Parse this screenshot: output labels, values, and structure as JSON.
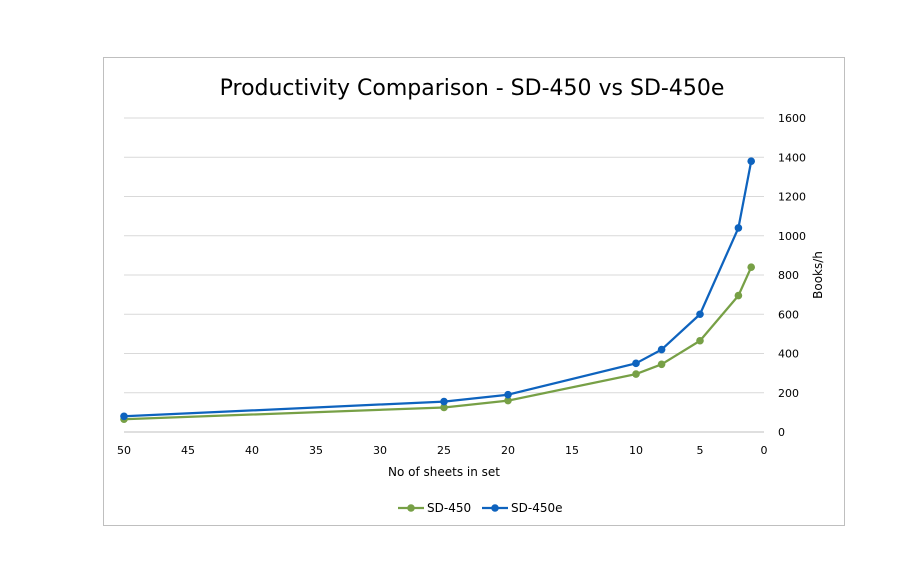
{
  "chart_data": {
    "type": "line",
    "title": "Productivity Comparison - SD-450 vs SD-450e",
    "xlabel": "No of sheets in set",
    "ylabel": "Books/h",
    "x_reversed": true,
    "xlim": [
      0,
      50
    ],
    "ylim": [
      0,
      1600
    ],
    "x_ticks": [
      "50",
      "45",
      "40",
      "35",
      "30",
      "25",
      "20",
      "15",
      "10",
      "5",
      "0"
    ],
    "y_ticks": [
      "0",
      "200",
      "400",
      "600",
      "800",
      "1000",
      "1200",
      "1400",
      "1600"
    ],
    "y_axis_position": "right",
    "grid": "horizontal",
    "legend_position": "bottom",
    "series": [
      {
        "name": "SD-450",
        "color": "#77A046",
        "x": [
          50,
          25,
          20,
          10,
          8,
          5,
          2,
          1
        ],
        "y": [
          65,
          125,
          160,
          295,
          345,
          465,
          695,
          840
        ]
      },
      {
        "name": "SD-450e",
        "color": "#0E63BE",
        "x": [
          50,
          25,
          20,
          10,
          8,
          5,
          2,
          1
        ],
        "y": [
          80,
          155,
          190,
          350,
          420,
          600,
          1040,
          1380
        ]
      }
    ]
  }
}
